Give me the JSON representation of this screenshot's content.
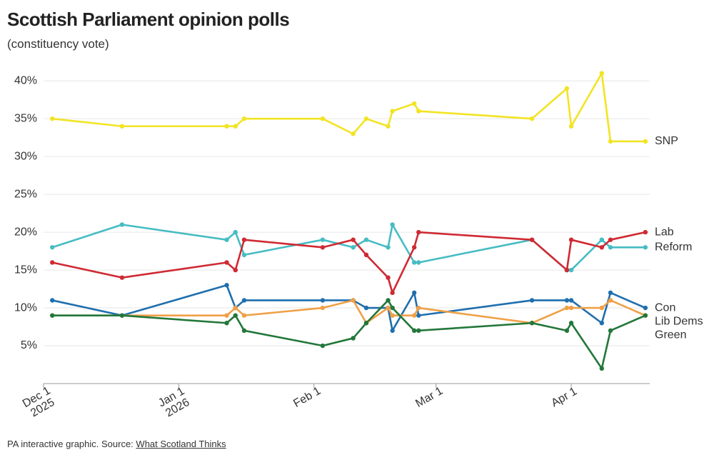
{
  "chart_data": {
    "type": "line",
    "title": "Scottish Parliament opinion polls",
    "subtitle": "(constituency vote)",
    "source_prefix": "PA interactive graphic. Source: ",
    "source_link": "What Scotland Thinks",
    "x": [
      "2025-12-03",
      "2025-12-19",
      "2026-01-12",
      "2026-01-14",
      "2026-01-16",
      "2026-02-03",
      "2026-02-10",
      "2026-02-13",
      "2026-02-18",
      "2026-02-19",
      "2026-02-24",
      "2026-02-25",
      "2026-03-23",
      "2026-03-31",
      "2026-04-01",
      "2026-04-08",
      "2026-04-10",
      "2026-04-18"
    ],
    "xlim": [
      "2025-12-01",
      "2026-04-19"
    ],
    "xticks": [
      {
        "value": "2025-12-01",
        "label": "Dec 1\n2025"
      },
      {
        "value": "2026-01-01",
        "label": "Jan 1\n2026"
      },
      {
        "value": "2026-02-01",
        "label": "Feb 1"
      },
      {
        "value": "2026-03-01",
        "label": "Mar 1"
      },
      {
        "value": "2026-04-01",
        "label": "Apr 1"
      }
    ],
    "ylim": [
      0,
      42
    ],
    "yticks": [
      {
        "value": 5,
        "label": "5%"
      },
      {
        "value": 10,
        "label": "10%"
      },
      {
        "value": 15,
        "label": "15%"
      },
      {
        "value": 20,
        "label": "20%"
      },
      {
        "value": 25,
        "label": "25%"
      },
      {
        "value": 30,
        "label": "30%"
      },
      {
        "value": 35,
        "label": "35%"
      },
      {
        "value": 40,
        "label": "40%"
      }
    ],
    "grid": true,
    "series": [
      {
        "name": "SNP",
        "color": "#f2e424",
        "values": [
          35,
          34,
          34,
          34,
          35,
          35,
          33,
          35,
          34,
          36,
          37,
          36,
          35,
          39,
          34,
          41,
          32,
          32
        ]
      },
      {
        "name": "Reform",
        "color": "#47bcc3",
        "values": [
          18,
          21,
          19,
          20,
          17,
          19,
          18,
          19,
          18,
          21,
          16,
          16,
          19,
          15,
          15,
          19,
          18,
          18
        ]
      },
      {
        "name": "Lab",
        "color": "#cf2a33",
        "values": [
          16,
          14,
          16,
          15,
          19,
          18,
          19,
          17,
          14,
          12,
          18,
          20,
          19,
          15,
          19,
          18,
          19,
          20
        ]
      },
      {
        "name": "Con",
        "color": "#1f6fae",
        "values": [
          11,
          9,
          13,
          10,
          11,
          11,
          11,
          10,
          10,
          7,
          12,
          9,
          11,
          11,
          11,
          8,
          12,
          10
        ]
      },
      {
        "name": "Lib Dems",
        "color": "#f0a046",
        "values": [
          9,
          9,
          9,
          10,
          9,
          10,
          11,
          8,
          10,
          9,
          9,
          10,
          8,
          10,
          10,
          10,
          11,
          9
        ]
      },
      {
        "name": "Green",
        "color": "#23773a",
        "values": [
          9,
          9,
          8,
          9,
          7,
          5,
          6,
          8,
          11,
          10,
          7,
          7,
          8,
          7,
          8,
          2,
          7,
          9
        ]
      }
    ]
  }
}
